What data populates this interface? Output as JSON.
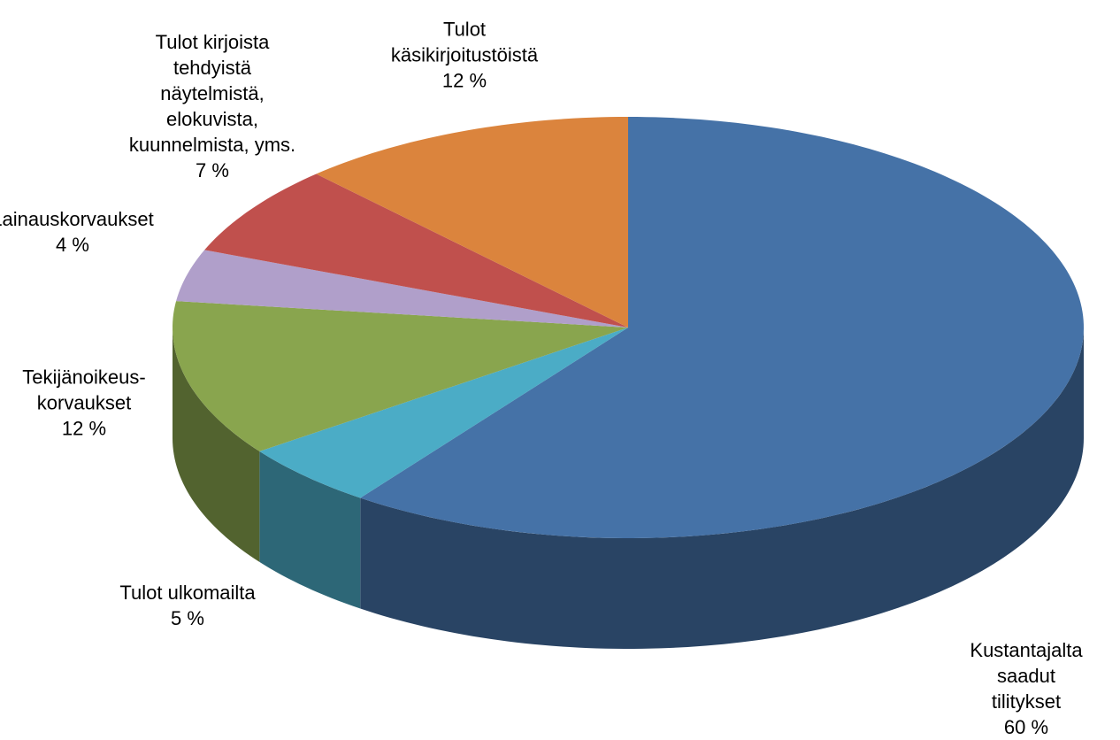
{
  "chart_data": {
    "type": "pie",
    "categories": [
      "Kustantajalta\nsaadut tilitykset",
      "Tulot ulkomailta",
      "Tekijänoikeus-\nkorvaukset",
      "Lainauskorvaukset",
      "Tulot kirjoista\ntehdyistä\nnäytelmistä,\nelokuvista,\nkuunnelmista, yms.",
      "Tulot\nkäsikirjoitustöistä"
    ],
    "values": [
      60,
      5,
      12,
      4,
      7,
      12
    ],
    "value_labels": [
      "60 %",
      "5 %",
      "12 %",
      "4 %",
      "7 %",
      "12 %"
    ],
    "colors": [
      "#4572a7",
      "#4bacc6",
      "#89a54e",
      "#b09fca",
      "#c0504d",
      "#db843d"
    ]
  }
}
